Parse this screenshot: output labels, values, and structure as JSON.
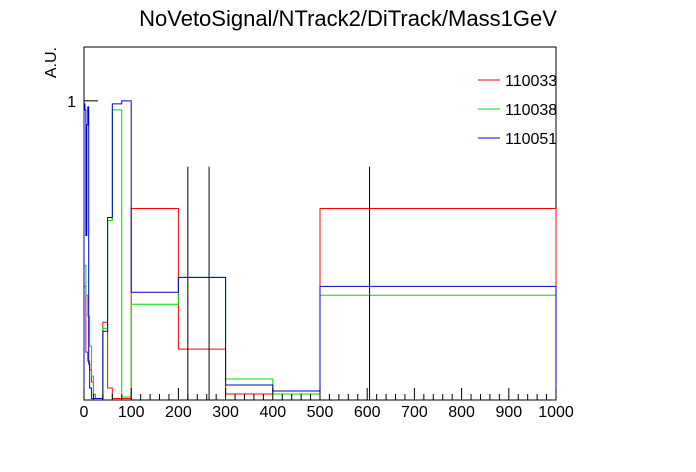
{
  "chart_data": {
    "type": "histogram",
    "title": "NoVetoSignal/NTrack2/DiTrack/Mass1GeV",
    "xlabel": "",
    "ylabel": "A.U.",
    "xlim": [
      0,
      1000
    ],
    "ylim": [
      0,
      1.18
    ],
    "x_ticks": [
      0,
      100,
      200,
      300,
      400,
      500,
      600,
      700,
      800,
      900,
      1000
    ],
    "x_tick_labels": [
      "0",
      "100",
      "200",
      "300",
      "400",
      "500",
      "600",
      "700",
      "800",
      "900",
      "1000"
    ],
    "y_ticks": [
      1
    ],
    "y_tick_labels": [
      "1"
    ],
    "grid": false,
    "legend_position": "top-right",
    "series": [
      {
        "name": "110033",
        "color": "#ff0000",
        "edges": [
          0,
          4,
          8,
          12,
          16,
          20,
          24,
          40,
          50,
          60,
          80,
          100,
          200,
          300,
          500,
          1000
        ],
        "values": [
          0.38,
          0.16,
          0.13,
          0.1,
          0.06,
          0.02,
          0.005,
          0.26,
          0.04,
          0.005,
          0.005,
          0.64,
          0.17,
          0.02,
          0.64
        ]
      },
      {
        "name": "110038",
        "color": "#00dd00",
        "edges": [
          0,
          4,
          8,
          12,
          16,
          20,
          24,
          40,
          50,
          60,
          80,
          100,
          200,
          300,
          400,
          500,
          1000
        ],
        "values": [
          0.45,
          0.35,
          0.28,
          0.18,
          0.08,
          0.02,
          0.005,
          0.24,
          0.6,
          0.97,
          0.01,
          0.32,
          0.41,
          0.07,
          0.02,
          0.35
        ]
      },
      {
        "name": "110051",
        "color": "#0000cc",
        "edges": [
          0,
          2,
          4,
          6,
          8,
          10,
          12,
          16,
          24,
          40,
          50,
          60,
          80,
          100,
          200,
          300,
          400,
          500,
          1000
        ],
        "values": [
          0.99,
          0.97,
          0.55,
          0.92,
          0.98,
          0.12,
          0.04,
          0.005,
          0.005,
          0.23,
          0.61,
          0.99,
          1.0,
          0.36,
          0.41,
          0.05,
          0.03,
          0.38
        ]
      }
    ],
    "markers": [
      {
        "x": 220,
        "y": 0.78,
        "color": "#000000"
      },
      {
        "x": 265,
        "y": 0.78,
        "color": "#000000"
      },
      {
        "x": 605,
        "y": 0.78,
        "color": "#000000"
      }
    ]
  }
}
